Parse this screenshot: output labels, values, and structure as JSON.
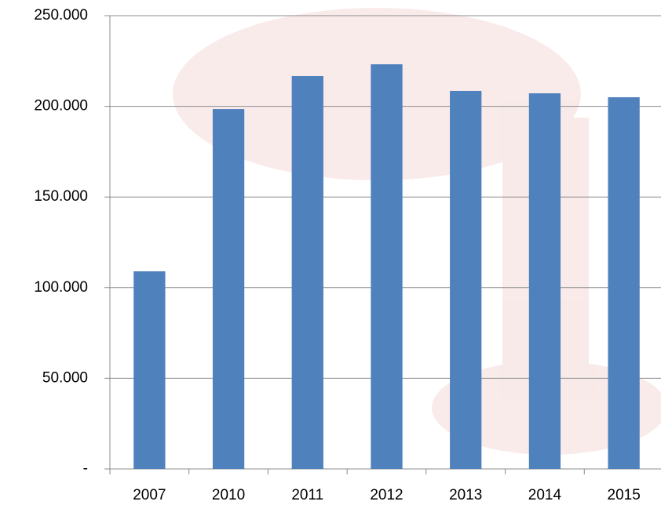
{
  "chart_data": {
    "type": "bar",
    "categories": [
      "2007",
      "2010",
      "2011",
      "2012",
      "2013",
      "2014",
      "2015"
    ],
    "values": [
      109000,
      198500,
      216700,
      223200,
      208500,
      207200,
      205000
    ],
    "color": "#4f81bd",
    "ylim": [
      0,
      250000
    ],
    "yticks": [
      {
        "value": 0,
        "label": "-"
      },
      {
        "value": 50000,
        "label": "50.000"
      },
      {
        "value": 100000,
        "label": "100.000"
      },
      {
        "value": 150000,
        "label": "150.000"
      },
      {
        "value": 200000,
        "label": "200.000"
      },
      {
        "value": 250000,
        "label": "250.000"
      }
    ],
    "grid": true
  }
}
